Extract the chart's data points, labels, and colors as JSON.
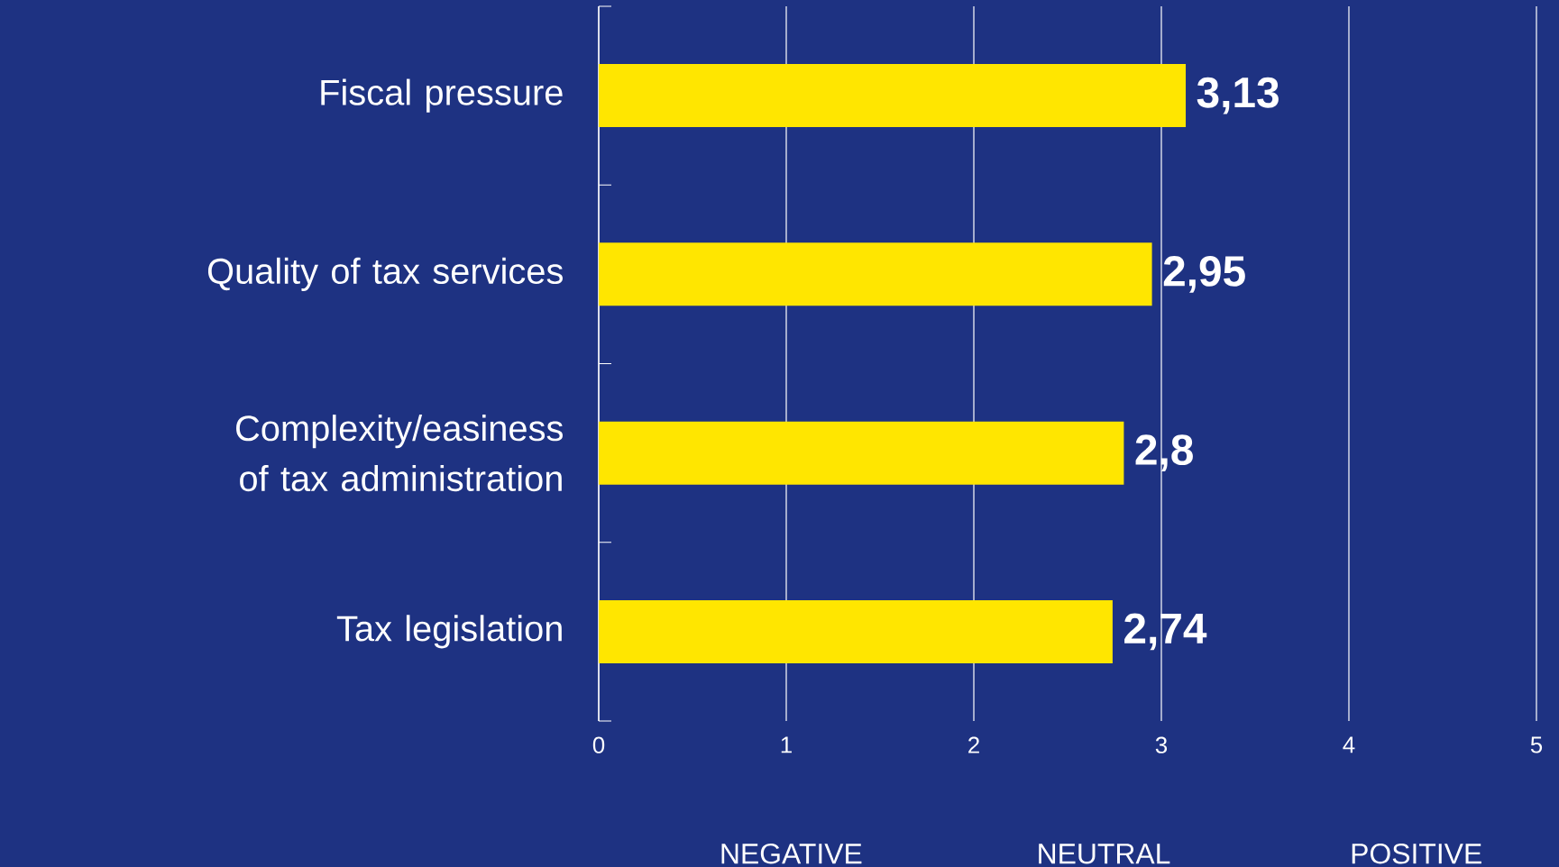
{
  "chart_data": {
    "type": "bar",
    "orientation": "horizontal",
    "categories": [
      "Fiscal pressure",
      "Quality of tax services",
      "Complexity/easiness of tax administration",
      "Tax legislation"
    ],
    "values": [
      3.13,
      2.95,
      2.8,
      2.74
    ],
    "value_labels": [
      "3,13",
      "2,95",
      "2,8",
      "2,74"
    ],
    "color": "#ffe600",
    "xlim": [
      0,
      5
    ],
    "xticks": [
      0,
      1,
      2,
      3,
      4,
      5
    ],
    "grid": "x",
    "annotations": [
      "NEGATIVE",
      "NEUTRAL",
      "POSITIVE"
    ]
  }
}
